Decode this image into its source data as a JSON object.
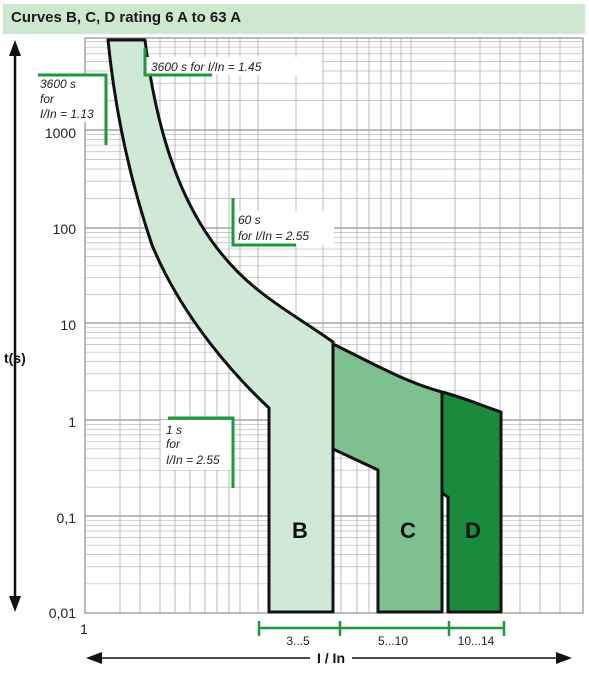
{
  "title": "Curves B, C, D rating 6 A to 63 A",
  "colors": {
    "b_band": "#cfe9d6",
    "c_band": "#7cc18f",
    "d_band": "#1a8a3c",
    "annotation": "#1a9a3a",
    "title_bg": "#cde8cf"
  },
  "chart_data": {
    "type": "area",
    "title": "Curves B, C, D rating 6 A to 63 A",
    "xlabel": "I / In",
    "ylabel": "t(s)",
    "yscale": "log",
    "ylim": [
      0.01,
      10000
    ],
    "y_ticks": [
      "0,01",
      "0,1",
      "1",
      "10",
      "100",
      "1000"
    ],
    "x_tick": "1",
    "grid": true,
    "series": [
      {
        "name": "B",
        "band_from_I_In": 3,
        "band_to_I_In": 5
      },
      {
        "name": "C",
        "band_from_I_In": 5,
        "band_to_I_In": 10
      },
      {
        "name": "D",
        "band_from_I_In": 10,
        "band_to_I_In": 14
      }
    ],
    "ranges": [
      "3...5",
      "5...10",
      "10...14"
    ],
    "annotations": [
      {
        "lines": [
          "3600 s",
          "for",
          "I/In = 1.13"
        ],
        "I_In": 1.13,
        "t": 3600
      },
      {
        "lines": [
          "3600 s for I/In = 1.45"
        ],
        "I_In": 1.45,
        "t": 3600
      },
      {
        "lines": [
          "60 s",
          "for I/In = 2.55"
        ],
        "I_In": 2.55,
        "t": 60
      },
      {
        "lines": [
          "1 s",
          "for",
          "I/In = 2.55"
        ],
        "I_In": 2.55,
        "t": 1
      }
    ]
  }
}
